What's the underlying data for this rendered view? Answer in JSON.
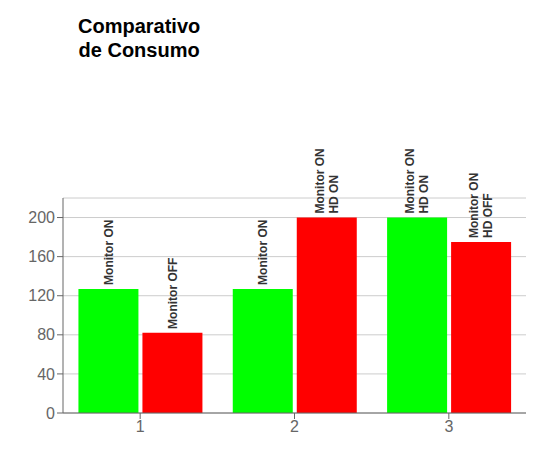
{
  "chart_data": {
    "type": "bar",
    "title": "Comparativo\nde Consumo",
    "categories": [
      "1",
      "2",
      "3"
    ],
    "series": [
      {
        "color": "#00FF00",
        "values": [
          127,
          127,
          200
        ],
        "labels": [
          "Monitor ON",
          "Monitor ON",
          "Monitor ON\nHD ON"
        ]
      },
      {
        "color": "#FF0000",
        "values": [
          82,
          200,
          175
        ],
        "labels": [
          "Monitor OFF",
          "Monitor ON\nHD ON",
          "Monitor ON\nHD OFF"
        ]
      }
    ],
    "ylim": [
      0,
      220
    ],
    "yticks": [
      0,
      40,
      80,
      120,
      160,
      200
    ],
    "grid": true
  }
}
